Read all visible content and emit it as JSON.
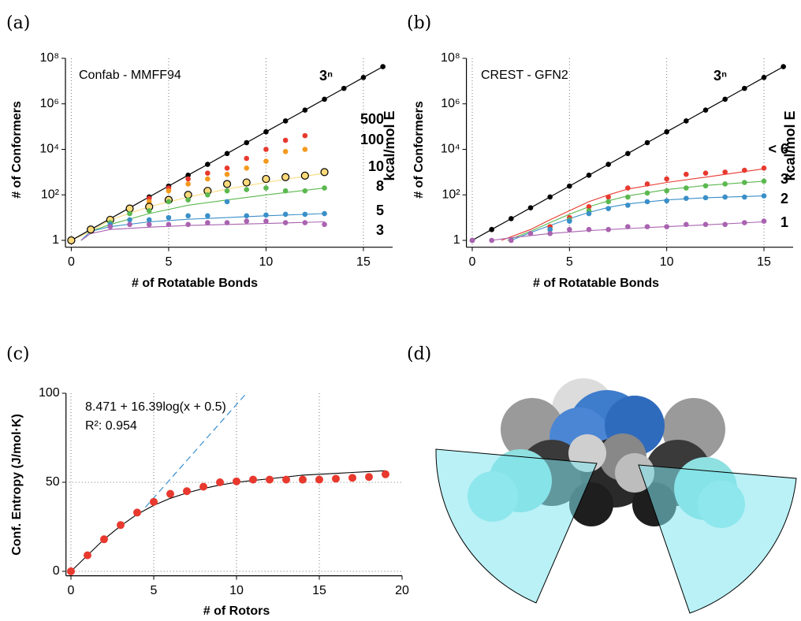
{
  "chart_data": [
    {
      "type": "scatter",
      "panel": "(a)",
      "title": "Confab - MMFF94",
      "x_label": "# of Rotatable Bonds",
      "y_label": "# of Conformers",
      "legend_title": "kcal/mol E",
      "log_y": true,
      "grid": "x",
      "xlim": [
        -0.3,
        16.5
      ],
      "ylim": [
        0.5,
        100000000
      ],
      "xticks": [
        0,
        5,
        10,
        15
      ],
      "yticks": [
        1,
        {
          "value": 100,
          "label": "10²"
        },
        {
          "value": 10000,
          "label": "10⁴"
        },
        {
          "value": 1000000,
          "label": "10⁶"
        },
        {
          "value": 100000000,
          "label": "10⁸"
        }
      ],
      "series": [
        {
          "name": "3ⁿ",
          "color": "#000000",
          "line": true,
          "x": [
            0,
            1,
            2,
            3,
            4,
            5,
            6,
            7,
            8,
            9,
            10,
            11,
            12,
            13,
            14,
            15,
            16
          ],
          "values": [
            1,
            3,
            9,
            27,
            81,
            243,
            729,
            2187,
            6561,
            19683,
            59049,
            177147,
            531441,
            1594323,
            4782969,
            14348907,
            43046721
          ]
        },
        {
          "name": "500",
          "color": "#e8392f",
          "x": [
            2,
            3,
            4,
            5,
            6,
            7,
            8,
            9,
            10,
            11,
            12
          ],
          "values": [
            9,
            27,
            70,
            200,
            500,
            900,
            1500,
            4000,
            10000,
            25000,
            40000
          ]
        },
        {
          "name": "100",
          "color": "#f39a1e",
          "x": [
            2,
            3,
            4,
            5,
            6,
            7,
            8,
            9,
            10,
            11,
            12
          ],
          "values": [
            9,
            27,
            50,
            150,
            300,
            500,
            800,
            1500,
            3000,
            8000,
            10000
          ]
        },
        {
          "name": "10",
          "color": "#fcd97a",
          "edgecolor": "#000000",
          "x": [
            0,
            1,
            2,
            3,
            4,
            5,
            6,
            7,
            8,
            9,
            10,
            11,
            12,
            13
          ],
          "values": [
            1,
            3,
            8,
            25,
            30,
            60,
            100,
            150,
            300,
            350,
            500,
            600,
            700,
            1000
          ]
        },
        {
          "name": "8",
          "color": "#5bb84f",
          "x": [
            2,
            3,
            4,
            5,
            6,
            7,
            8,
            9,
            10,
            11,
            12,
            13
          ],
          "values": [
            6,
            15,
            20,
            50,
            60,
            100,
            150,
            170,
            200,
            150,
            150,
            200
          ]
        },
        {
          "name": "5",
          "color": "#3a8fc8",
          "x": [
            2,
            3,
            4,
            5,
            6,
            7,
            8,
            9,
            10,
            11,
            12,
            13
          ],
          "values": [
            5,
            8,
            8,
            10,
            12,
            12,
            50,
            12,
            13,
            14,
            14,
            15
          ]
        },
        {
          "name": "3",
          "color": "#a963b0",
          "x": [
            2,
            3,
            4,
            5,
            6,
            7,
            8,
            9,
            10,
            11,
            12,
            13
          ],
          "values": [
            4,
            5,
            5,
            5,
            5,
            6,
            6,
            7,
            7,
            6,
            6,
            5
          ]
        }
      ],
      "fits": [
        {
          "color": "#fcd97a",
          "x": [
            0,
            1,
            2,
            4,
            6,
            8,
            10,
            13
          ],
          "values": [
            1,
            2.5,
            8,
            30,
            80,
            180,
            350,
            900
          ]
        },
        {
          "color": "#5bb84f",
          "x": [
            0.5,
            1,
            2,
            4,
            6,
            8,
            10,
            13
          ],
          "values": [
            1,
            2.5,
            5,
            15,
            35,
            60,
            100,
            200
          ]
        },
        {
          "color": "#3a8fc8",
          "x": [
            0.5,
            1,
            2,
            4,
            6,
            8,
            10,
            13
          ],
          "values": [
            1,
            2.5,
            4,
            6.5,
            8.5,
            10,
            12,
            15
          ]
        },
        {
          "color": "#a963b0",
          "x": [
            0.5,
            1,
            2,
            4,
            6,
            8,
            10,
            13
          ],
          "values": [
            1,
            2,
            3,
            3.8,
            4.5,
            5,
            5.5,
            6.5
          ]
        }
      ]
    },
    {
      "type": "scatter",
      "panel": "(b)",
      "title": "CREST - GFN2",
      "x_label": "# of Rotatable Bonds",
      "y_label": "# of Conformers",
      "legend_title": "kcal/mol E",
      "log_y": true,
      "grid": "x",
      "xlim": [
        -0.3,
        16.5
      ],
      "ylim": [
        0.5,
        100000000
      ],
      "xticks": [
        0,
        5,
        10,
        15
      ],
      "yticks": [
        1,
        {
          "value": 100,
          "label": "10²"
        },
        {
          "value": 10000,
          "label": "10⁴"
        },
        {
          "value": 1000000,
          "label": "10⁶"
        },
        {
          "value": 100000000,
          "label": "10⁸"
        }
      ],
      "series": [
        {
          "name": "3ⁿ",
          "color": "#000000",
          "line": true,
          "x": [
            0,
            1,
            2,
            3,
            4,
            5,
            6,
            7,
            8,
            9,
            10,
            11,
            12,
            13,
            14,
            15,
            16
          ],
          "values": [
            1,
            3,
            9,
            27,
            81,
            243,
            729,
            2187,
            6561,
            19683,
            59049,
            177147,
            531441,
            1594323,
            4782969,
            14348907,
            43046721
          ]
        },
        {
          "name": "< 6",
          "color": "#e8392f",
          "x": [
            4,
            5,
            6,
            7,
            8,
            9,
            10,
            11,
            12,
            13,
            14,
            15
          ],
          "values": [
            4,
            10,
            30,
            80,
            200,
            300,
            500,
            800,
            900,
            1000,
            1200,
            1500
          ]
        },
        {
          "name": "3",
          "color": "#5bb84f",
          "x": [
            4,
            5,
            6,
            7,
            8,
            9,
            10,
            11,
            12,
            13,
            14,
            15
          ],
          "values": [
            3,
            8,
            20,
            50,
            80,
            120,
            150,
            200,
            250,
            300,
            350,
            400
          ]
        },
        {
          "name": "2",
          "color": "#3a8fc8",
          "x": [
            4,
            5,
            6,
            7,
            8,
            9,
            10,
            11,
            12,
            13,
            14,
            15
          ],
          "values": [
            3,
            7,
            15,
            25,
            35,
            50,
            55,
            70,
            75,
            80,
            80,
            90
          ]
        },
        {
          "name": "1",
          "color": "#a963b0",
          "x": [
            0,
            1,
            2,
            3,
            4,
            5,
            6,
            7,
            8,
            9,
            10,
            11,
            12,
            13,
            14,
            15
          ],
          "values": [
            1,
            1,
            1,
            2,
            2,
            3,
            3,
            3,
            4,
            4,
            4,
            5,
            5,
            5,
            6,
            7
          ]
        }
      ],
      "fits": [
        {
          "color": "#e8392f",
          "x": [
            1.5,
            3,
            4,
            5,
            6,
            7,
            8,
            10,
            12,
            15
          ],
          "values": [
            1,
            3,
            8,
            20,
            50,
            100,
            180,
            350,
            600,
            1400
          ]
        },
        {
          "color": "#5bb84f",
          "x": [
            1.8,
            3,
            4,
            5,
            6,
            7,
            8,
            10,
            12,
            15
          ],
          "values": [
            1,
            2.5,
            6,
            14,
            30,
            55,
            90,
            170,
            260,
            400
          ]
        },
        {
          "color": "#3a8fc8",
          "x": [
            2,
            3,
            4,
            5,
            6,
            7,
            8,
            10,
            12,
            15
          ],
          "values": [
            1,
            2.2,
            4.5,
            9,
            17,
            28,
            40,
            60,
            75,
            90
          ]
        },
        {
          "color": "#a963b0",
          "x": [
            1,
            2,
            4,
            6,
            8,
            10,
            12,
            15
          ],
          "values": [
            1,
            1.3,
            2,
            2.7,
            3.3,
            4,
            4.8,
            6.5
          ]
        }
      ]
    },
    {
      "type": "scatter",
      "panel": "(c)",
      "x_label": "# of Rotors",
      "y_label": "Conf. Entropy (J/mol·K)",
      "annotations": [
        "8.471 + 16.39log(x + 0.5)",
        "R²: 0.954"
      ],
      "log_y": false,
      "grid": "both",
      "xlim": [
        -0.3,
        20
      ],
      "ylim": [
        -2.5,
        100
      ],
      "xticks": [
        0,
        5,
        10,
        15,
        20
      ],
      "yticks": [
        0,
        50,
        100
      ],
      "series": [
        {
          "color": "#e8392f",
          "size": 5,
          "x": [
            0,
            1,
            2,
            3,
            4,
            5,
            6,
            7,
            8,
            9,
            10,
            11,
            12,
            13,
            14,
            15,
            16,
            17,
            18,
            19
          ],
          "values": [
            0,
            9,
            18,
            26,
            33,
            39,
            43.5,
            45,
            47.5,
            50,
            50.5,
            51.5,
            51.5,
            51.5,
            51.5,
            51.5,
            52,
            52.5,
            53,
            54.5
          ]
        }
      ],
      "fits": [
        {
          "color": "#000000",
          "x": [
            0,
            1,
            2,
            3,
            4,
            5,
            6,
            7,
            8,
            9,
            10,
            11,
            12,
            13,
            14,
            15,
            16,
            17,
            18,
            19
          ],
          "values": [
            0,
            9,
            18,
            25.5,
            32,
            37,
            41,
            44,
            46.5,
            48.5,
            50,
            51,
            52,
            53,
            54,
            54.5,
            55,
            55.5,
            56,
            56.5
          ]
        },
        {
          "color": "#3b8fd0",
          "dash": true,
          "x": [
            4.5,
            10.6
          ],
          "values": [
            36,
            100
          ]
        }
      ]
    }
  ],
  "figure": {
    "panel_d": "(d)"
  }
}
